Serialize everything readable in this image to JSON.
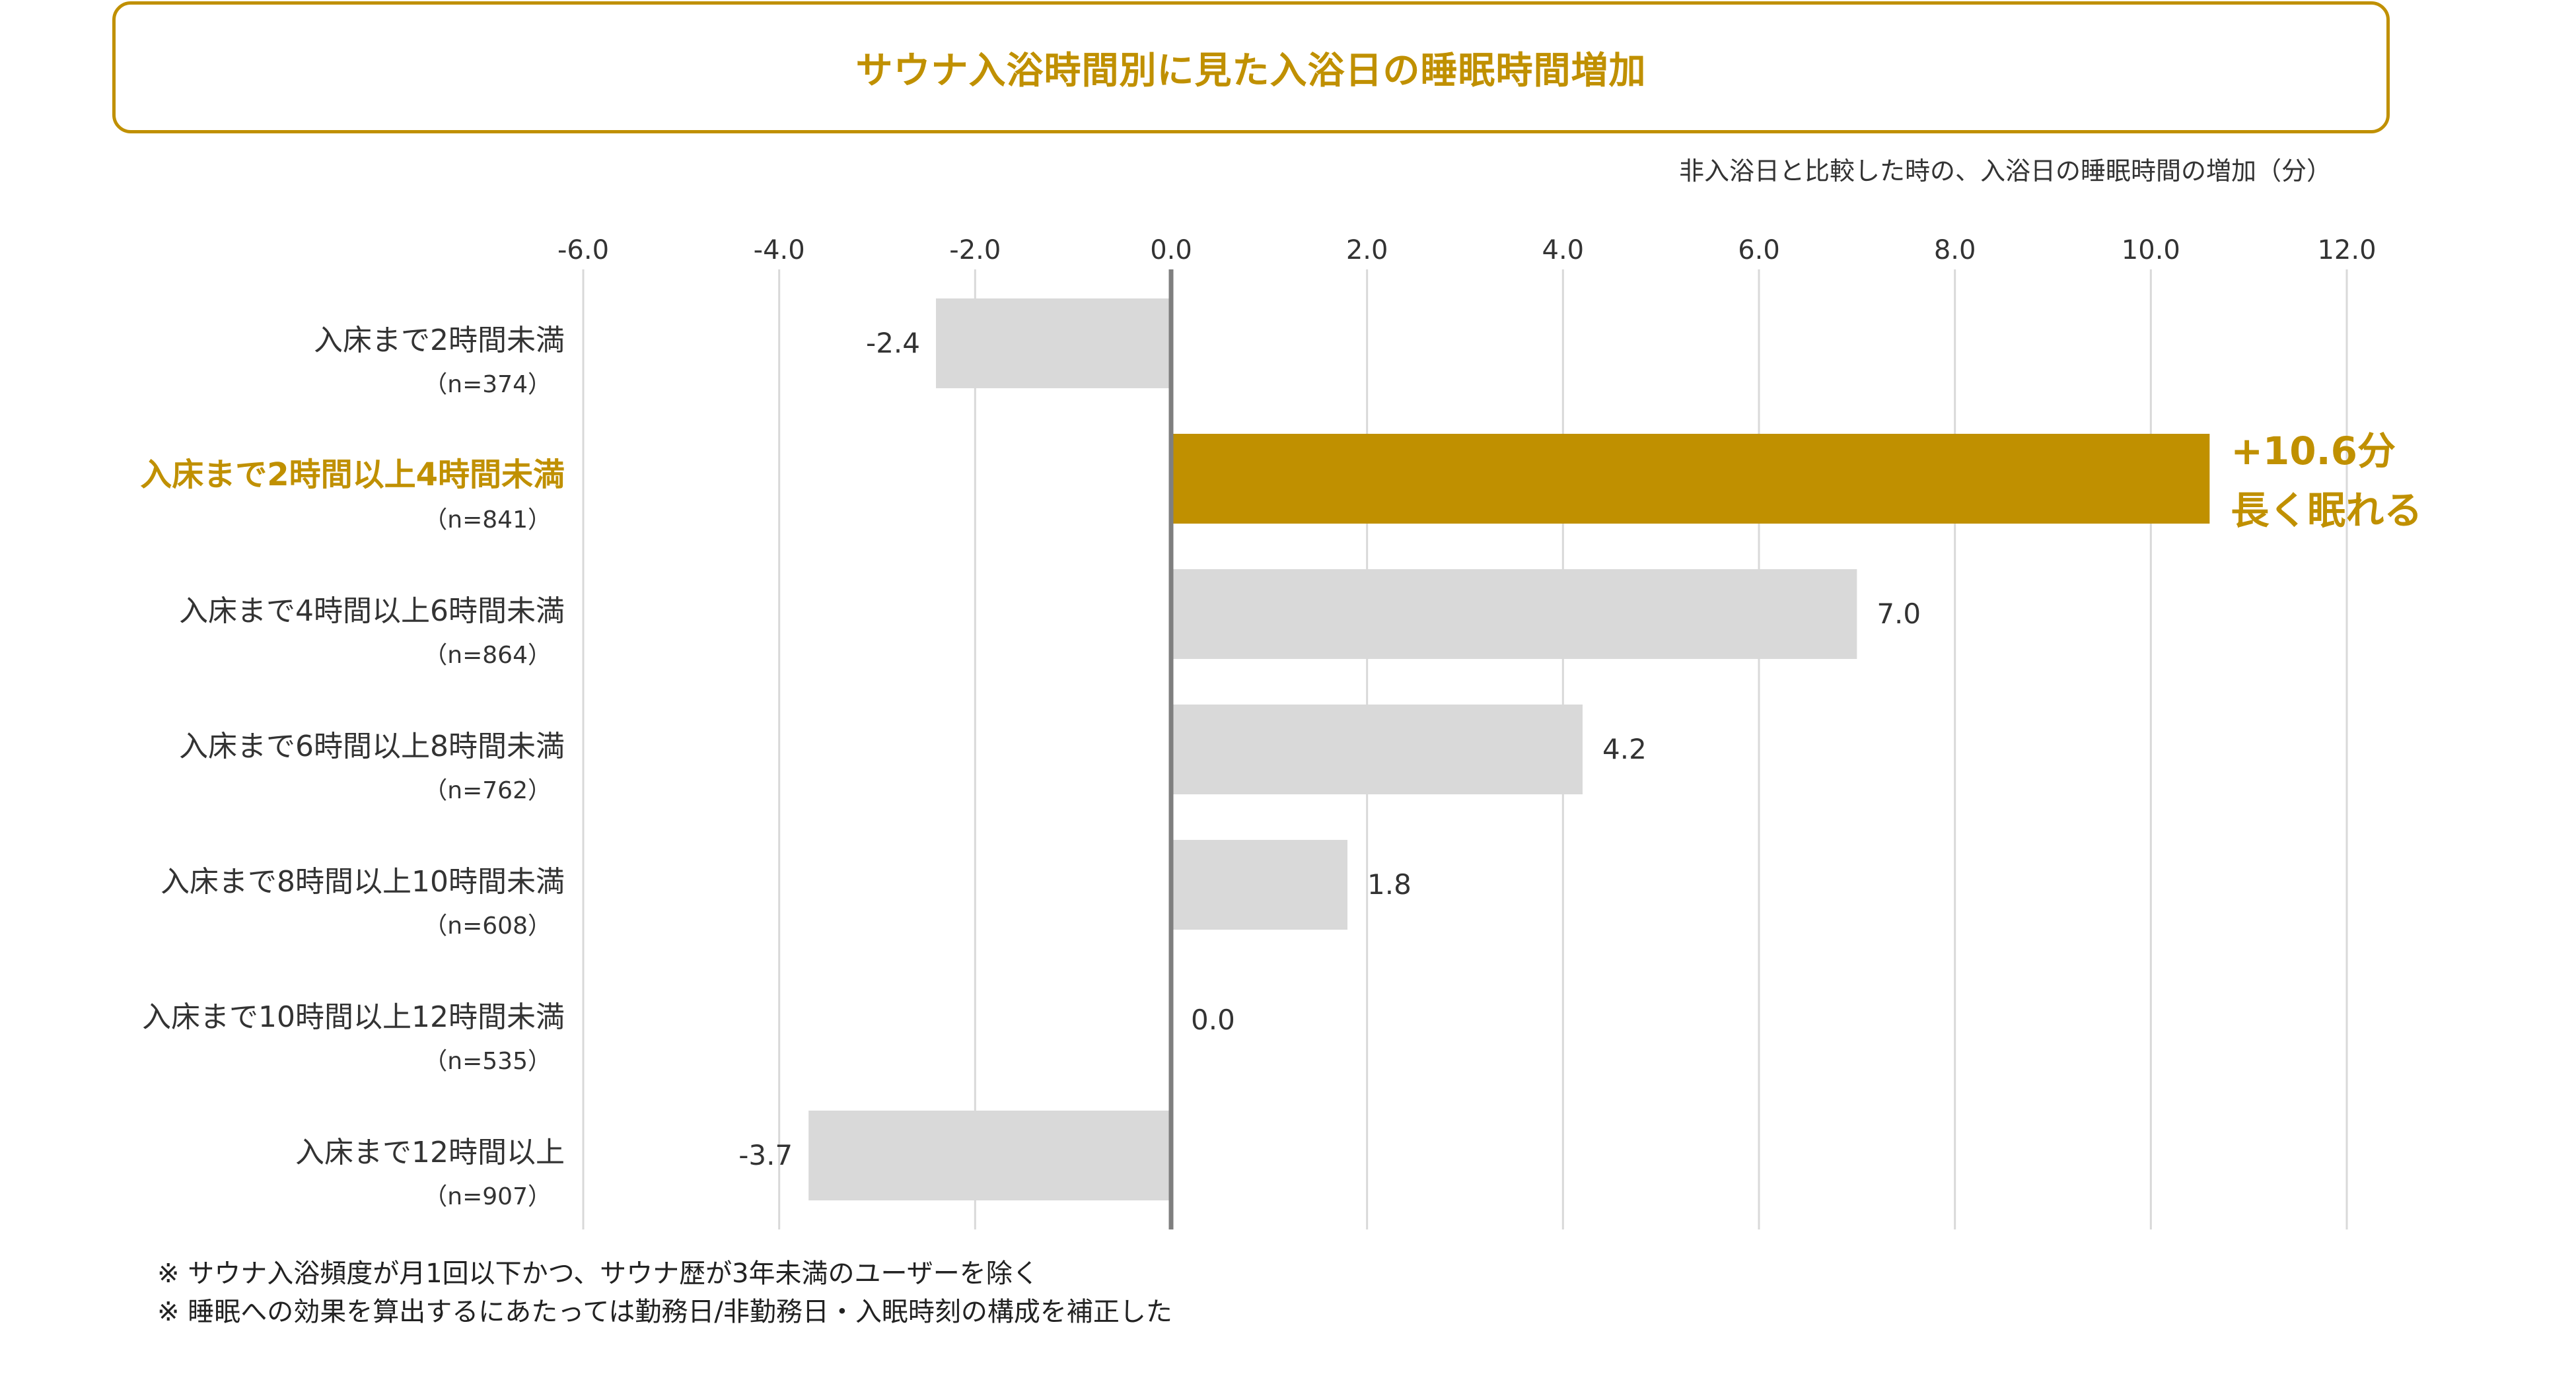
{
  "title": "サウナ入浴時間別に見た入浴日の睡眠時間増加",
  "unit_label": "非入浴日と比較した時の、入浴日の睡眠時間の増加（分）",
  "chart_data": {
    "type": "bar",
    "orientation": "horizontal",
    "title": "サウナ入浴時間別に見た入浴日の睡眠時間増加",
    "xlabel": "非入浴日と比較した時の、入浴日の睡眠時間の増加（分）",
    "ylabel": "",
    "xlim": [
      -6.0,
      12.0
    ],
    "ticks": [
      -6.0,
      -4.0,
      -2.0,
      0.0,
      2.0,
      4.0,
      6.0,
      8.0,
      10.0,
      12.0
    ],
    "tick_labels": [
      "-6.0",
      "-4.0",
      "-2.0",
      "0.0",
      "2.0",
      "4.0",
      "6.0",
      "8.0",
      "10.0",
      "12.0"
    ],
    "grid": true,
    "categories": [
      {
        "label": "入床まで2時間未満",
        "n": "（n=374）",
        "value": -2.4,
        "value_label": "-2.4",
        "highlight": false
      },
      {
        "label": "入床まで2時間以上4時間未満",
        "n": "（n=841）",
        "value": 10.6,
        "value_label": "",
        "highlight": true
      },
      {
        "label": "入床まで4時間以上6時間未満",
        "n": "（n=864）",
        "value": 7.0,
        "value_label": "7.0",
        "highlight": false
      },
      {
        "label": "入床まで6時間以上8時間未満",
        "n": "（n=762）",
        "value": 4.2,
        "value_label": "4.2",
        "highlight": false
      },
      {
        "label": "入床まで8時間以上10時間未満",
        "n": "（n=608）",
        "value": 1.8,
        "value_label": "1.8",
        "highlight": false
      },
      {
        "label": "入床まで10時間以上12時間未満",
        "n": "（n=535）",
        "value": 0.0,
        "value_label": "0.0",
        "highlight": false
      },
      {
        "label": "入床まで12時間以上",
        "n": "（n=907）",
        "value": -3.7,
        "value_label": "-3.7",
        "highlight": false
      }
    ],
    "annotation": {
      "line1": "+10.6分",
      "line2": "長く眠れる"
    },
    "colors": {
      "bar": "#d9d9d9",
      "highlight": "#c09000",
      "grid": "#d9d9d9",
      "zero_line": "#7f7f7f",
      "text": "#333333"
    }
  },
  "notes": [
    "※ サウナ入浴頻度が月1回以下かつ、サウナ歴が3年未満のユーザーを除く",
    "※ 睡眠への効果を算出するにあたっては勤務日/非勤務日・入眠時刻の構成を補正した"
  ]
}
